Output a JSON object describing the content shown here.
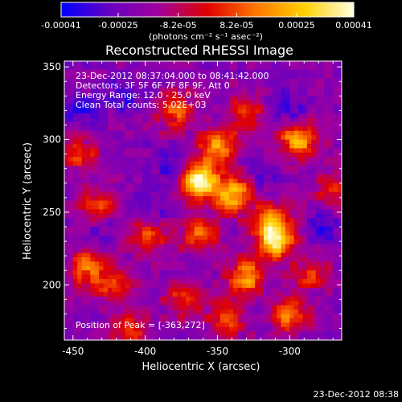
{
  "chart_data": {
    "type": "heatmap",
    "title": "Reconstructed RHESSI Image",
    "xlabel": "Heliocentric X (arcsec)",
    "ylabel": "Heliocentric Y (arcsec)",
    "xlim": [
      -456,
      -264
    ],
    "ylim": [
      162,
      354
    ],
    "x_ticks": [
      "-450",
      "-400",
      "-350",
      "-300"
    ],
    "y_ticks": [
      "200",
      "250",
      "300",
      "350"
    ],
    "x_tick_values": [
      -450,
      -400,
      -350,
      -300
    ],
    "y_tick_values": [
      200,
      250,
      300,
      350
    ],
    "colorbar": {
      "ticks": [
        "-0.00041",
        "-0.00025",
        "-8.2e-05",
        "8.2e-05",
        "0.00025",
        "0.00041"
      ],
      "tick_values": [
        -0.00041,
        -0.00025,
        -8.2e-05,
        8.2e-05,
        0.00025,
        0.00041
      ],
      "range": [
        -0.00041,
        0.00041
      ],
      "unit_label": "(photons cm⁻² s⁻¹ asec⁻²)",
      "colors": [
        "#0000ff",
        "#6a00c0",
        "#a000a0",
        "#e00000",
        "#ff7a00",
        "#ffd000",
        "#ffffe0"
      ]
    },
    "annotations": {
      "time": "23-Dec-2012 08:37:04.000 to 08:41:42.000",
      "detectors": "Detectors: 3F 5F 6F 7F 8F 9F, Att 0",
      "energy": "Energy Range: 12.0 - 25.0 keV",
      "clean": "Clean    Total counts: 5.02E+03",
      "peak": "Position of Peak = [-363,272]"
    },
    "peak": [
      -363,
      272
    ],
    "sources": [
      {
        "x": -363,
        "y": 272,
        "amp": 1.0
      },
      {
        "x": -339,
        "y": 262,
        "amp": 0.75
      },
      {
        "x": -310,
        "y": 230,
        "amp": 0.85
      },
      {
        "x": -312,
        "y": 245,
        "amp": 0.55
      },
      {
        "x": -350,
        "y": 296,
        "amp": 0.6
      },
      {
        "x": -294,
        "y": 300,
        "amp": 0.7
      },
      {
        "x": -300,
        "y": 180,
        "amp": 0.55
      },
      {
        "x": -330,
        "y": 205,
        "amp": 0.65
      },
      {
        "x": -362,
        "y": 235,
        "amp": 0.5
      },
      {
        "x": -432,
        "y": 254,
        "amp": 0.5
      },
      {
        "x": -440,
        "y": 212,
        "amp": 0.55
      },
      {
        "x": -420,
        "y": 200,
        "amp": 0.45
      },
      {
        "x": -398,
        "y": 234,
        "amp": 0.5
      },
      {
        "x": -372,
        "y": 190,
        "amp": 0.45
      },
      {
        "x": -343,
        "y": 177,
        "amp": 0.5
      },
      {
        "x": -411,
        "y": 170,
        "amp": 0.45
      },
      {
        "x": -285,
        "y": 205,
        "amp": 0.45
      },
      {
        "x": -380,
        "y": 320,
        "amp": 0.5
      },
      {
        "x": -330,
        "y": 318,
        "amp": 0.45
      },
      {
        "x": -445,
        "y": 290,
        "amp": 0.4
      },
      {
        "x": -270,
        "y": 265,
        "amp": 0.35
      }
    ],
    "minima": [
      {
        "x": -415,
        "y": 330,
        "amp": 0.6
      },
      {
        "x": -380,
        "y": 280,
        "amp": 0.55
      },
      {
        "x": -300,
        "y": 320,
        "amp": 0.55
      },
      {
        "x": -275,
        "y": 240,
        "amp": 0.6
      },
      {
        "x": -430,
        "y": 240,
        "amp": 0.45
      },
      {
        "x": -318,
        "y": 275,
        "amp": 0.4
      },
      {
        "x": -285,
        "y": 195,
        "amp": 0.35
      },
      {
        "x": -445,
        "y": 320,
        "amp": 0.5
      },
      {
        "x": -395,
        "y": 250,
        "amp": 0.45
      }
    ]
  },
  "footer": {
    "timestamp": "23-Dec-2012 08:38"
  }
}
